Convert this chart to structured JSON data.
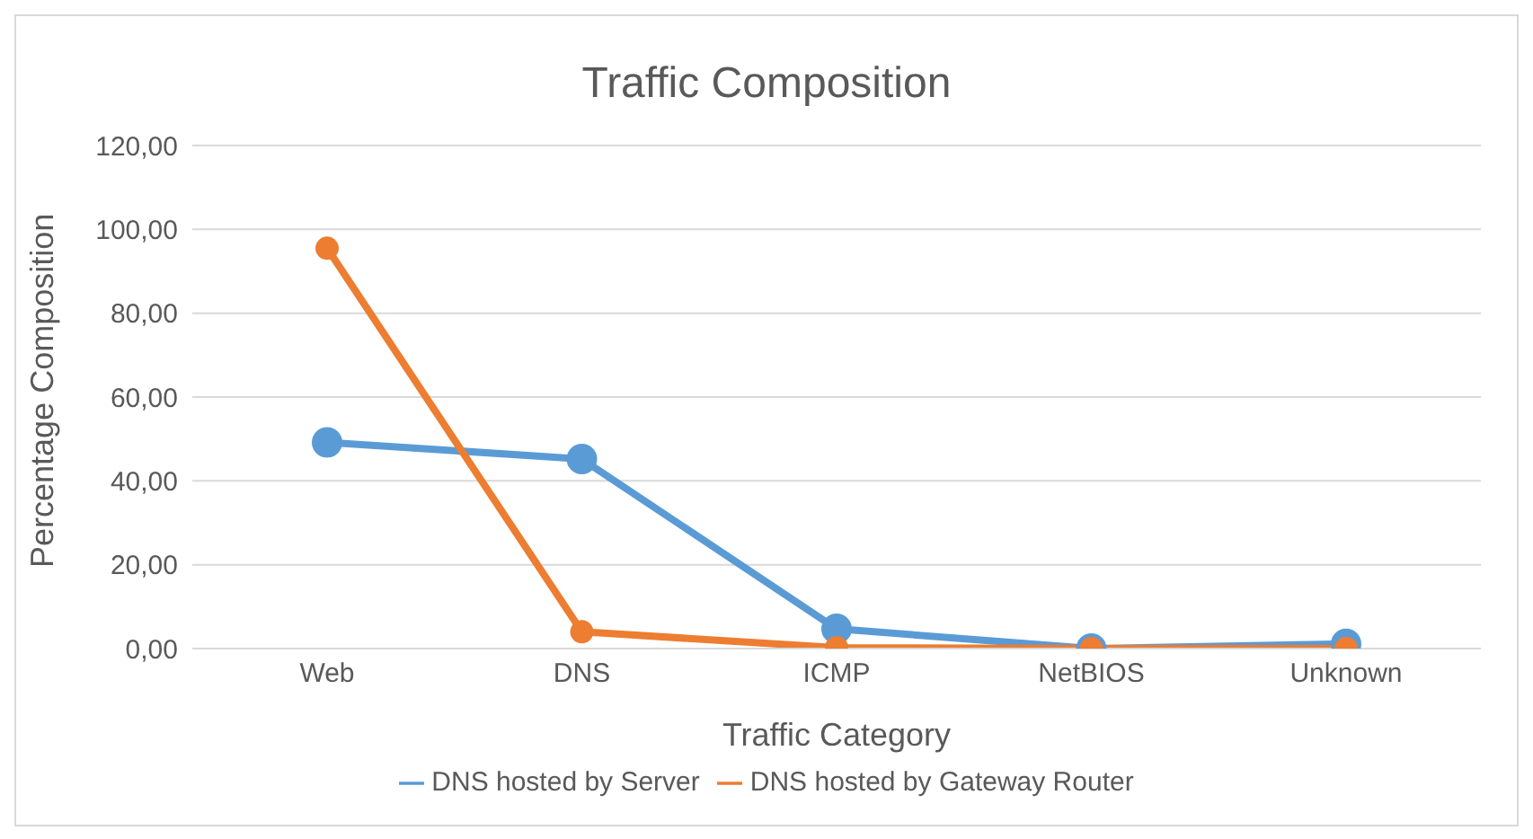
{
  "chart_data": {
    "type": "line",
    "title": "Traffic Composition",
    "xlabel": "Traffic Category",
    "ylabel": "Percentage Composition",
    "categories": [
      "Web",
      "DNS",
      "ICMP",
      "NetBIOS",
      "Unknown"
    ],
    "series": [
      {
        "name": "DNS hosted by Server",
        "color": "#5b9bd5",
        "values": [
          49.2,
          45.2,
          4.7,
          0,
          1.1
        ]
      },
      {
        "name": "DNS hosted by Gateway Router",
        "color": "#ed7d31",
        "values": [
          95.5,
          4.0,
          0.2,
          0,
          0
        ]
      }
    ],
    "ylim": [
      0,
      120
    ],
    "yticks": [
      {
        "value": 0,
        "label": "0,00"
      },
      {
        "value": 20,
        "label": "20,00"
      },
      {
        "value": 40,
        "label": "40,00"
      },
      {
        "value": 60,
        "label": "60,00"
      },
      {
        "value": 80,
        "label": "80,00"
      },
      {
        "value": 100,
        "label": "100,00"
      },
      {
        "value": 120,
        "label": "120,00"
      }
    ],
    "grid": "y",
    "legend": "bottom",
    "marker": "circle",
    "line_style": "solid"
  }
}
